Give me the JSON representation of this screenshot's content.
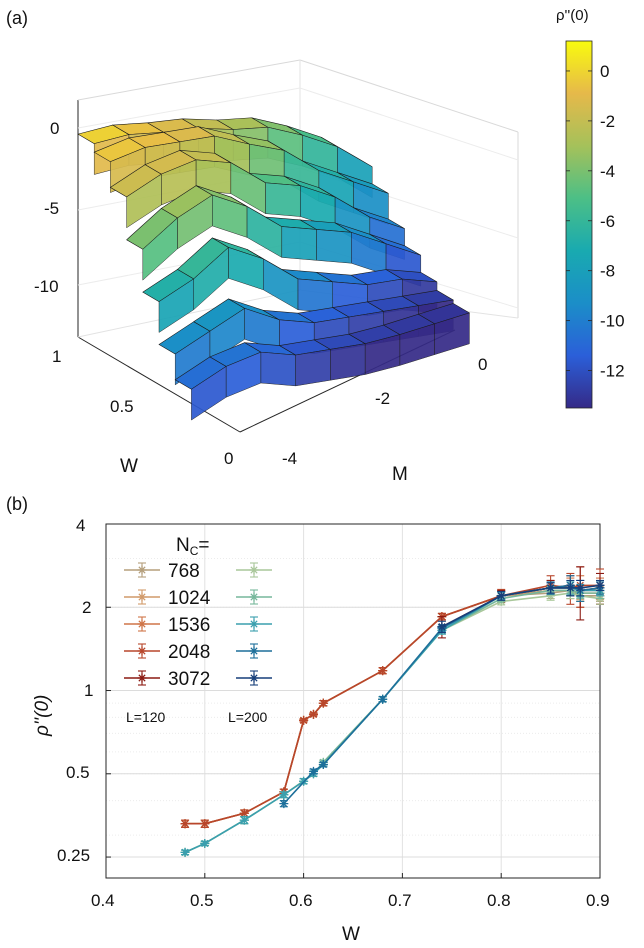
{
  "panels": {
    "a_label": "(a)",
    "b_label": "(b)"
  },
  "chart_data": [
    {
      "type": "surface3d",
      "xlabel": "M",
      "ylabel": "W",
      "zlabel": "",
      "x_ticks": [
        "-4",
        "-2",
        "0"
      ],
      "y_ticks": [
        "0",
        "0.5",
        "1"
      ],
      "z_ticks": [
        "0",
        "-5",
        "-10"
      ],
      "xlim": [
        -4,
        0.5
      ],
      "ylim": [
        0,
        1
      ],
      "zlim": [
        -13,
        1
      ],
      "colorbar": {
        "title": "ρ''(0)",
        "ticks": [
          "0",
          "-2",
          "-4",
          "-6",
          "-8",
          "-10",
          "-12"
        ],
        "range": [
          -13.5,
          1.2
        ],
        "colors": [
          "#352a87",
          "#2b5fd9",
          "#1b8ec8",
          "#19aab0",
          "#4cbf86",
          "#a5c15a",
          "#e6b94a",
          "#f9fb0e"
        ]
      },
      "terraces": [
        {
          "w": 0.95,
          "z": [
            0.0,
            -0.3,
            -1.0,
            -1.6,
            -2.5,
            -3.2,
            -4.5,
            -6.0,
            -8.0
          ]
        },
        {
          "w": 0.85,
          "z": [
            -0.5,
            -0.5,
            -1.0,
            -1.5,
            -2.8,
            -4.0,
            -6.0,
            -7.5,
            -9.0
          ]
        },
        {
          "w": 0.75,
          "z": [
            -2.0,
            -1.5,
            -1.5,
            -2.5,
            -4.5,
            -5.5,
            -7.0,
            -9.0,
            -10.5
          ]
        },
        {
          "w": 0.65,
          "z": [
            -4.5,
            -3.5,
            -3.0,
            -4.5,
            -6.5,
            -7.5,
            -8.5,
            -10.0,
            -11.5
          ]
        },
        {
          "w": 0.55,
          "z": [
            -7.0,
            -6.5,
            -5.5,
            -7.0,
            -9.0,
            -10.0,
            -11.0,
            -11.5,
            -12.5
          ]
        },
        {
          "w": 0.45,
          "z": [
            -9.5,
            -9.0,
            -8.5,
            -10.0,
            -11.0,
            -11.5,
            -12.0,
            -12.5,
            -13.0
          ]
        },
        {
          "w": 0.35,
          "z": [
            -11.0,
            -10.5,
            -10.5,
            -11.5,
            -12.0,
            -12.5,
            -12.8,
            -13.0,
            -13.2
          ]
        }
      ]
    },
    {
      "type": "line",
      "xlabel": "W",
      "ylabel": "ρ''(0)",
      "yscale": "log",
      "xlim": [
        0.4,
        0.9
      ],
      "ylim": [
        0.21,
        4
      ],
      "x_ticks": [
        "0.4",
        "0.5",
        "0.6",
        "0.7",
        "0.8",
        "0.9"
      ],
      "y_ticks": [
        "0.25",
        "0.5",
        "1",
        "2",
        "4"
      ],
      "grid": true,
      "legend": {
        "title": "N",
        "title_sub": "C",
        "title_suffix": "=",
        "placement": "top-left",
        "entries": [
          "768",
          "1024",
          "1536",
          "2048",
          "3072"
        ],
        "group_labels": [
          "L=120",
          "L=200"
        ]
      },
      "series": [
        {
          "name": "768",
          "L": 120,
          "color": "#b59f7c",
          "x": [
            0.48,
            0.5,
            0.54,
            0.58,
            0.6,
            0.61,
            0.62,
            0.68,
            0.74,
            0.8,
            0.85,
            0.87,
            0.88,
            0.9
          ],
          "y": [
            0.33,
            0.33,
            0.36,
            0.43,
            0.78,
            0.82,
            0.9,
            1.18,
            1.85,
            2.2,
            2.25,
            2.3,
            2.2,
            2.2
          ],
          "err": [
            0.01,
            0.01,
            0.01,
            0.01,
            0.01,
            0.01,
            0.02,
            0.03,
            0.05,
            0.08,
            0.1,
            0.1,
            0.1,
            0.1
          ]
        },
        {
          "name": "1024",
          "L": 120,
          "color": "#d19a6a",
          "x": [
            0.48,
            0.5,
            0.54,
            0.58,
            0.6,
            0.61,
            0.62,
            0.68,
            0.74,
            0.8,
            0.85,
            0.87,
            0.88,
            0.9
          ],
          "y": [
            0.33,
            0.33,
            0.36,
            0.43,
            0.78,
            0.82,
            0.9,
            1.18,
            1.85,
            2.2,
            2.3,
            2.3,
            2.25,
            2.25
          ],
          "err": [
            0.01,
            0.01,
            0.01,
            0.01,
            0.01,
            0.01,
            0.02,
            0.03,
            0.05,
            0.08,
            0.1,
            0.1,
            0.12,
            0.12
          ]
        },
        {
          "name": "1536",
          "L": 120,
          "color": "#cf7548",
          "x": [
            0.48,
            0.5,
            0.54,
            0.58,
            0.6,
            0.61,
            0.62,
            0.68,
            0.74,
            0.8,
            0.85,
            0.87,
            0.88,
            0.9
          ],
          "y": [
            0.33,
            0.33,
            0.36,
            0.43,
            0.78,
            0.82,
            0.9,
            1.18,
            1.85,
            2.2,
            2.35,
            2.35,
            2.3,
            2.3
          ],
          "err": [
            0.01,
            0.01,
            0.01,
            0.01,
            0.01,
            0.01,
            0.02,
            0.03,
            0.05,
            0.1,
            0.15,
            0.2,
            0.3,
            0.25
          ]
        },
        {
          "name": "2048",
          "L": 120,
          "color": "#b8462b",
          "x": [
            0.48,
            0.5,
            0.54,
            0.58,
            0.6,
            0.61,
            0.62,
            0.68,
            0.74,
            0.8,
            0.85,
            0.87,
            0.88,
            0.9
          ],
          "y": [
            0.33,
            0.33,
            0.36,
            0.43,
            0.78,
            0.82,
            0.9,
            1.18,
            1.85,
            2.2,
            2.4,
            2.35,
            2.4,
            2.4
          ],
          "err": [
            0.01,
            0.01,
            0.01,
            0.01,
            0.01,
            0.01,
            0.02,
            0.03,
            0.05,
            0.12,
            0.2,
            0.3,
            0.4,
            0.35
          ]
        },
        {
          "name": "3072",
          "L": 120,
          "color": "#8b1a12",
          "x": [
            0.74,
            0.8,
            0.85,
            0.87,
            0.88,
            0.9
          ],
          "y": [
            1.7,
            2.2,
            2.35,
            2.4,
            2.3,
            2.35
          ],
          "err": [
            0.15,
            0.1,
            0.15,
            0.2,
            0.5,
            0.3
          ]
        },
        {
          "name": "768",
          "L": 200,
          "color": "#a9c79a",
          "x": [
            0.48,
            0.5,
            0.54,
            0.58,
            0.61,
            0.62,
            0.68,
            0.74,
            0.8,
            0.85,
            0.87,
            0.88,
            0.9
          ],
          "y": [
            0.26,
            0.28,
            0.34,
            0.42,
            0.5,
            0.55,
            0.93,
            1.65,
            2.1,
            2.2,
            2.25,
            2.2,
            2.15
          ],
          "err": [
            0.005,
            0.005,
            0.01,
            0.01,
            0.01,
            0.01,
            0.02,
            0.05,
            0.06,
            0.08,
            0.1,
            0.1,
            0.1
          ]
        },
        {
          "name": "1024",
          "L": 200,
          "color": "#76b79b",
          "x": [
            0.48,
            0.5,
            0.54,
            0.58,
            0.6,
            0.61,
            0.62,
            0.68,
            0.74,
            0.8,
            0.85,
            0.87,
            0.88,
            0.9
          ],
          "y": [
            0.26,
            0.28,
            0.34,
            0.42,
            0.47,
            0.5,
            0.55,
            0.93,
            1.65,
            2.15,
            2.3,
            2.3,
            2.25,
            2.25
          ],
          "err": [
            0.005,
            0.005,
            0.01,
            0.01,
            0.01,
            0.01,
            0.01,
            0.02,
            0.05,
            0.06,
            0.08,
            0.1,
            0.1,
            0.1
          ]
        },
        {
          "name": "1536",
          "L": 200,
          "color": "#3a9fae",
          "x": [
            0.48,
            0.5,
            0.54,
            0.58,
            0.6,
            0.61,
            0.62,
            0.68,
            0.74,
            0.8,
            0.85,
            0.87,
            0.88,
            0.9
          ],
          "y": [
            0.26,
            0.28,
            0.34,
            0.42,
            0.47,
            0.5,
            0.54,
            0.93,
            1.65,
            2.2,
            2.35,
            2.35,
            2.3,
            2.3
          ],
          "err": [
            0.005,
            0.005,
            0.01,
            0.01,
            0.01,
            0.01,
            0.01,
            0.02,
            0.05,
            0.06,
            0.1,
            0.12,
            0.12,
            0.1
          ]
        },
        {
          "name": "2048",
          "L": 200,
          "color": "#1d6f9a",
          "x": [
            0.58,
            0.61,
            0.62,
            0.68,
            0.74,
            0.8,
            0.85,
            0.87,
            0.88,
            0.9
          ],
          "y": [
            0.39,
            0.51,
            0.54,
            0.93,
            1.68,
            2.2,
            2.35,
            2.4,
            2.3,
            2.35
          ],
          "err": [
            0.01,
            0.01,
            0.01,
            0.02,
            0.05,
            0.08,
            0.12,
            0.2,
            0.2,
            0.12
          ]
        },
        {
          "name": "3072",
          "L": 200,
          "color": "#173f7a",
          "x": [
            0.74,
            0.8,
            0.85,
            0.87,
            0.88,
            0.9
          ],
          "y": [
            1.7,
            2.2,
            2.35,
            2.35,
            2.35,
            2.4
          ],
          "err": [
            0.08,
            0.08,
            0.1,
            0.15,
            0.15,
            0.1
          ]
        }
      ]
    }
  ]
}
